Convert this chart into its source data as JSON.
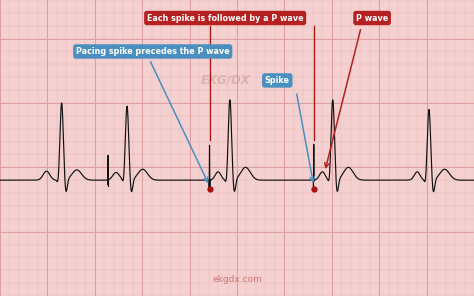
{
  "background_color": "#f5d0d0",
  "grid_minor_color": "#e8b8b8",
  "grid_major_color": "#dda0a0",
  "ecg_color": "#111111",
  "annotation_blue_bg": "#4a8fc0",
  "annotation_red_bg": "#b52020",
  "annotation_text_color": "#ffffff",
  "watermark_color": "#cc9999",
  "footer_color": "#cc7777",
  "spike_dot_color": "#aa1111",
  "watermark_text": "EKG/DX",
  "footer_text": "ekgdx.com",
  "label_pacing": "Pacing spike precedes the P wave",
  "label_each_spike": "Each spike is followed by a P wave",
  "label_p_wave": "P wave",
  "label_spike": "Spike",
  "figsize": [
    4.74,
    2.96
  ],
  "dpi": 100
}
